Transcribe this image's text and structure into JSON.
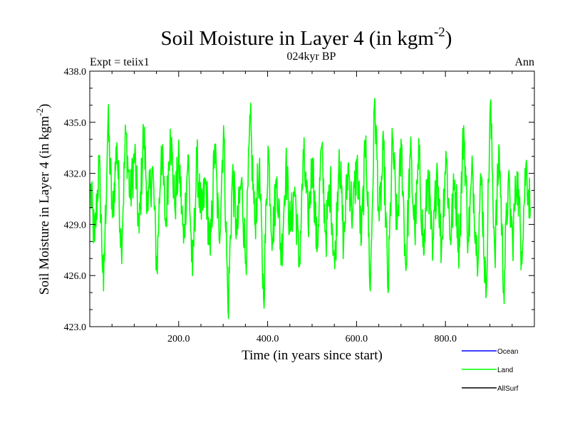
{
  "chart_data": {
    "type": "line",
    "title_main": "Soil Moisture in Layer 4 (in kgm",
    "title_sup": "-2",
    "title_close": ")",
    "subtitle_left": "Expt = teiix1",
    "subtitle_center": "024kyr BP",
    "subtitle_right": "Ann",
    "xlabel": "Time (in years since start)",
    "ylabel_main": "Soil Moisture in Layer 4 (in kgm",
    "ylabel_sup": "-2",
    "ylabel_close": ")",
    "xlim": [
      0,
      1000
    ],
    "ylim": [
      423.0,
      438.0
    ],
    "xticks": [
      {
        "value": 200,
        "label": "200.0"
      },
      {
        "value": 400,
        "label": "400.0"
      },
      {
        "value": 600,
        "label": "600.0"
      },
      {
        "value": 800,
        "label": "800.0"
      }
    ],
    "yticks": [
      {
        "value": 423.0,
        "label": "423.0"
      },
      {
        "value": 426.0,
        "label": "426.0"
      },
      {
        "value": 429.0,
        "label": "429.0"
      },
      {
        "value": 432.0,
        "label": "432.0"
      },
      {
        "value": 435.0,
        "label": "435.0"
      },
      {
        "value": 438.0,
        "label": "438.0"
      }
    ],
    "legend": [
      {
        "name": "Ocean",
        "color": "#0000ff"
      },
      {
        "name": "Land",
        "color": "#00ff00"
      },
      {
        "name": "AllSurf",
        "color": "#000000"
      }
    ],
    "legend_position": "bottom-right",
    "series": [
      {
        "name": "Land",
        "color": "#00ff00",
        "x_start": 1,
        "x_step": 10,
        "values": [
          431.2,
          428.0,
          432.6,
          425.1,
          435.1,
          429.4,
          433.8,
          427.6,
          434.4,
          430.5,
          433.2,
          428.5,
          434.5,
          429.8,
          432.4,
          426.3,
          433.6,
          428.9,
          434.6,
          430.1,
          432.7,
          427.9,
          433.1,
          426.0,
          432.8,
          429.3,
          431.5,
          427.2,
          433.7,
          428.1,
          434.8,
          423.9,
          432.0,
          428.4,
          431.6,
          426.8,
          435.2,
          429.0,
          432.3,
          424.6,
          433.6,
          428.2,
          431.8,
          427.0,
          432.6,
          428.6,
          431.2,
          426.5,
          433.0,
          429.1,
          432.9,
          427.4,
          433.5,
          428.3,
          431.5,
          426.4,
          433.4,
          427.8,
          432.5,
          429.5,
          432.6,
          428.0,
          434.2,
          425.1,
          436.4,
          429.2,
          433.4,
          425.0,
          434.1,
          428.7,
          433.6,
          426.3,
          433.2,
          428.6,
          433.0,
          427.2,
          432.2,
          426.9,
          432.6,
          427.5,
          433.3,
          428.2,
          431.6,
          427.6,
          434.8,
          428.1,
          432.2,
          427.1,
          431.8,
          424.7,
          436.1,
          427.3,
          433.5,
          425.2,
          431.4,
          428.0,
          432.1,
          427.4,
          432.5,
          430.0
        ]
      },
      {
        "name": "Ocean",
        "color": "#0000ff",
        "values": []
      },
      {
        "name": "AllSurf",
        "color": "#000000",
        "values": []
      }
    ]
  }
}
